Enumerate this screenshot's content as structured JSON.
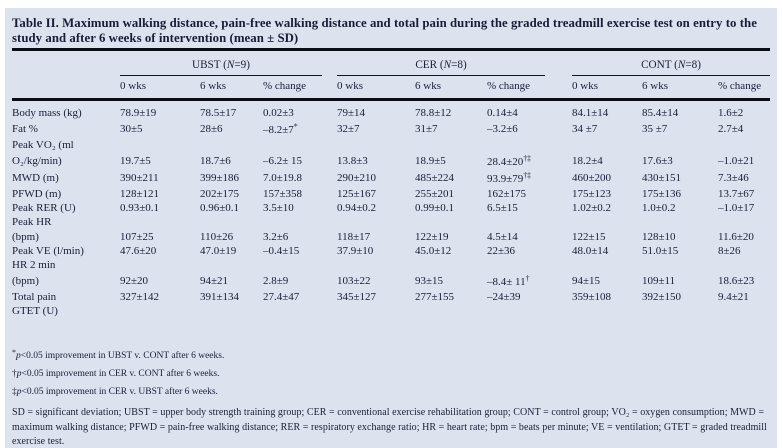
{
  "colors": {
    "panel_bg": "#dce3ee",
    "text": "#1c1c36",
    "rule": "#0c0c16"
  },
  "title": "Table II. Maximum walking distance, pain-free walking distance and total pain during the graded treadmill exercise test on entry to the study and after 6 weeks of intervention (mean ± SD)",
  "header": {
    "groups": [
      {
        "pre": "UBST (",
        "n": "N",
        "post": "=9)"
      },
      {
        "pre": "CER (",
        "n": "N",
        "post": "=8)"
      },
      {
        "pre": "CONT (",
        "n": "N",
        "post": "=8)"
      }
    ],
    "subheaders": [
      "0 wks",
      "6 wks",
      "% change"
    ]
  },
  "rows": [
    {
      "label": "Body mass (kg)",
      "cells": [
        {
          "v": "78.9±19"
        },
        {
          "v": "78.5±17"
        },
        {
          "v": "0.02±3"
        },
        {
          "v": "79±14"
        },
        {
          "v": "78.8±12"
        },
        {
          "v": "0.14±4"
        },
        {
          "v": "84.1±14"
        },
        {
          "v": "85.4±14"
        },
        {
          "v": "1.6±2"
        }
      ]
    },
    {
      "label": "Fat %",
      "cells": [
        {
          "v": "30±5"
        },
        {
          "v": "28±6"
        },
        {
          "v": "–8.2±7",
          "sup": "*"
        },
        {
          "v": "32±7"
        },
        {
          "v": "31±7"
        },
        {
          "v": "–3.2±6"
        },
        {
          "v": "34 ±7"
        },
        {
          "v": "35 ±7"
        },
        {
          "v": "2.7±4"
        }
      ]
    },
    {
      "label": "Peak VO₂ (ml",
      "cells": []
    },
    {
      "label": "O₂/kg/min)",
      "cells": [
        {
          "v": "19.7±5"
        },
        {
          "v": "18.7±6"
        },
        {
          "v": "–6.2± 15"
        },
        {
          "v": "13.8±3"
        },
        {
          "v": "18.9±5"
        },
        {
          "v": "28.4±20",
          "sup": "†‡"
        },
        {
          "v": "18.2±4"
        },
        {
          "v": "17.6±3"
        },
        {
          "v": "–1.0±21"
        }
      ]
    },
    {
      "label": "MWD (m)",
      "cells": [
        {
          "v": "390±211"
        },
        {
          "v": "399±186"
        },
        {
          "v": "7.0±19.8"
        },
        {
          "v": "290±210"
        },
        {
          "v": "485±224"
        },
        {
          "v": "93.9±79",
          "sup": "†‡"
        },
        {
          "v": "460±200"
        },
        {
          "v": "430±151"
        },
        {
          "v": "7.3±46"
        }
      ]
    },
    {
      "label": "PFWD (m)",
      "cells": [
        {
          "v": "128±121"
        },
        {
          "v": "202±175"
        },
        {
          "v": "157±358"
        },
        {
          "v": "125±167"
        },
        {
          "v": "255±201"
        },
        {
          "v": "162±175"
        },
        {
          "v": "175±123"
        },
        {
          "v": "175±136"
        },
        {
          "v": "13.7±67"
        }
      ]
    },
    {
      "label": "Peak RER (U)",
      "cells": [
        {
          "v": "0.93±0.1"
        },
        {
          "v": "0.96±0.1"
        },
        {
          "v": "3.5±10"
        },
        {
          "v": "0.94±0.2"
        },
        {
          "v": "0.99±0.1"
        },
        {
          "v": "6.5±15"
        },
        {
          "v": "1.02±0.2"
        },
        {
          "v": "1.0±0.2"
        },
        {
          "v": "–1.0±17"
        }
      ]
    },
    {
      "label": "Peak HR",
      "cells": []
    },
    {
      "label": "(bpm)",
      "cells": [
        {
          "v": "107±25"
        },
        {
          "v": "110±26"
        },
        {
          "v": "3.2±6"
        },
        {
          "v": "118±17"
        },
        {
          "v": "122±19"
        },
        {
          "v": "4.5±14"
        },
        {
          "v": "122±15"
        },
        {
          "v": "128±10"
        },
        {
          "v": "11.6±20"
        }
      ]
    },
    {
      "label": "Peak VE (l/min)",
      "cells": [
        {
          "v": "47.6±20"
        },
        {
          "v": "47.0±19"
        },
        {
          "v": "–0.4±15"
        },
        {
          "v": "37.9±10"
        },
        {
          "v": "45.0±12"
        },
        {
          "v": "22±36"
        },
        {
          "v": "48.0±14"
        },
        {
          "v": "51.0±15"
        },
        {
          "v": "8±26"
        }
      ]
    },
    {
      "label": "HR 2 min",
      "cells": []
    },
    {
      "label": "(bpm)",
      "cells": [
        {
          "v": "92±20"
        },
        {
          "v": "94±21"
        },
        {
          "v": "2.8±9"
        },
        {
          "v": "103±22"
        },
        {
          "v": "93±15"
        },
        {
          "v": "–8.4± 11",
          "sup": "†"
        },
        {
          "v": "94±15"
        },
        {
          "v": "109±11"
        },
        {
          "v": "18.6±23"
        }
      ]
    },
    {
      "label": "Total pain",
      "cells": [
        {
          "v": "327±142"
        },
        {
          "v": "391±134"
        },
        {
          "v": "27.4±47"
        },
        {
          "v": "345±127"
        },
        {
          "v": "277±155"
        },
        {
          "v": "–24±39"
        },
        {
          "v": "359±108"
        },
        {
          "v": "392±150"
        },
        {
          "v": "9.4±21"
        }
      ]
    },
    {
      "label": "GTET (U)",
      "cells": []
    }
  ],
  "footnotes": [
    {
      "marker": "*",
      "p": "p",
      "rest": "<0.05 improvement in UBST v. CONT after 6 weeks."
    },
    {
      "marker": "†",
      "p": "p",
      "rest": "<0.05 improvement in CER v. CONT after 6 weeks."
    },
    {
      "marker": "‡",
      "p": "p",
      "rest": "<0.05 improvement in CER v. UBST after 6 weeks."
    }
  ],
  "abbreviations": "SD = significant deviation; UBST = upper body strength training group; CER = conventional exercise rehabilitation group; CONT = control group; VO₂ = oxygen consumption; MWD = maximum walking distance; PFWD = pain-free walking distance; RER = respiratory exchange ratio; HR = heart rate; bpm = beats per minute; VE = ventilation; GTET = graded treadmill exercise test."
}
